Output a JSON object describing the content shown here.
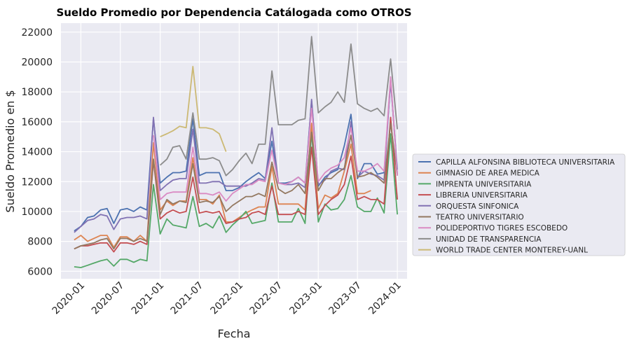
{
  "chart_data": {
    "type": "line",
    "title": "Sueldo Promedio por Dependencia Catálogada como OTROS",
    "xlabel": "Fecha",
    "ylabel": "Sueldo Promedio en $",
    "xlim": [
      "2019-10-01",
      "2024-02-15"
    ],
    "ylim": [
      5500,
      22600
    ],
    "grid": true,
    "legend_position": "outside-right",
    "x_tick_labels": [
      "2020-01",
      "2020-07",
      "2021-01",
      "2021-07",
      "2022-01",
      "2022-07",
      "2023-01",
      "2023-07",
      "2024-01"
    ],
    "y_tick_labels": [
      "6000",
      "8000",
      "10000",
      "12000",
      "14000",
      "16000",
      "18000",
      "20000",
      "22000"
    ],
    "x_months": [
      "2019-12",
      "2020-01",
      "2020-02",
      "2020-03",
      "2020-04",
      "2020-05",
      "2020-06",
      "2020-07",
      "2020-08",
      "2020-09",
      "2020-10",
      "2020-11",
      "2020-12",
      "2021-01",
      "2021-02",
      "2021-03",
      "2021-04",
      "2021-05",
      "2021-06",
      "2021-07",
      "2021-08",
      "2021-09",
      "2021-10",
      "2021-11",
      "2021-12",
      "2022-01",
      "2022-02",
      "2022-03",
      "2022-04",
      "2022-05",
      "2022-06",
      "2022-07",
      "2022-08",
      "2022-09",
      "2022-10",
      "2022-11",
      "2022-12",
      "2023-01",
      "2023-02",
      "2023-03",
      "2023-04",
      "2023-05",
      "2023-06",
      "2023-07",
      "2023-08",
      "2023-09",
      "2023-10",
      "2023-11",
      "2023-12",
      "2024-01"
    ],
    "series": [
      {
        "name": "CAPILLA ALFONSINA BIBLIOTECA UNIVERSITARIA",
        "color": "#4c72b0",
        "values": [
          8700,
          9000,
          9600,
          9700,
          10100,
          10200,
          9200,
          10100,
          10200,
          10000,
          10300,
          10100,
          16200,
          11900,
          12300,
          12600,
          12600,
          12700,
          16200,
          12400,
          12600,
          12600,
          12600,
          11400,
          11400,
          11600,
          12000,
          12300,
          12600,
          12200,
          14700,
          11900,
          11900,
          12000,
          12300,
          11900,
          17400,
          11700,
          12300,
          12600,
          12800,
          14400,
          16500,
          12200,
          13200,
          13200,
          12500,
          12600,
          18700,
          12800
        ]
      },
      {
        "name": "GIMNASIO DE AREA MEDICA",
        "color": "#dd8452",
        "values": [
          8100,
          8400,
          8000,
          8200,
          8400,
          8400,
          7600,
          8300,
          8300,
          8000,
          8400,
          8000,
          14600,
          10100,
          10700,
          10400,
          10700,
          10700,
          13600,
          10800,
          10800,
          10500,
          11100,
          9300,
          9300,
          9600,
          9900,
          10100,
          10300,
          10300,
          13000,
          10500,
          10500,
          10500,
          10500,
          10100,
          15900,
          10200,
          11100,
          10900,
          11200,
          12700,
          14500,
          11200,
          11200,
          11400,
          null,
          null,
          null,
          null
        ]
      },
      {
        "name": "IMPRENTA UNIVERSITARIA",
        "color": "#55a868",
        "values": [
          6300,
          6250,
          6400,
          6550,
          6700,
          6800,
          6350,
          6800,
          6800,
          6600,
          6800,
          6700,
          11800,
          8500,
          9500,
          9100,
          9000,
          8900,
          11000,
          9000,
          9200,
          8900,
          9700,
          8600,
          9100,
          9500,
          10000,
          9200,
          9300,
          9400,
          11900,
          9300,
          9300,
          9300,
          10200,
          9200,
          15300,
          9300,
          10500,
          10100,
          10200,
          10800,
          12400,
          10300,
          10000,
          10000,
          10900,
          9900,
          15200,
          9800
        ]
      },
      {
        "name": "LIBRERIA UNIVERSITARIA",
        "color": "#c44e52",
        "values": [
          7500,
          7700,
          7700,
          7800,
          7900,
          7900,
          7300,
          7900,
          7900,
          7800,
          8000,
          7800,
          13400,
          9500,
          9900,
          10100,
          9900,
          10000,
          12300,
          9900,
          10000,
          9900,
          10000,
          9200,
          9300,
          9500,
          9600,
          9900,
          10000,
          9800,
          11700,
          9800,
          9800,
          9800,
          10000,
          9800,
          14300,
          9800,
          10400,
          10800,
          11100,
          11800,
          13700,
          10800,
          11000,
          10800,
          10800,
          10500,
          16300,
          10800
        ]
      },
      {
        "name": "ORQUESTA SINFONICA",
        "color": "#8172b3",
        "values": [
          8600,
          9000,
          9400,
          9500,
          9800,
          9700,
          8800,
          9500,
          9600,
          9600,
          9700,
          9500,
          16300,
          11400,
          11800,
          12100,
          12200,
          12200,
          15500,
          11900,
          11900,
          12000,
          12000,
          11700,
          11700,
          11700,
          11700,
          11900,
          12200,
          12100,
          15600,
          11900,
          11800,
          11800,
          11900,
          11600,
          17500,
          11800,
          12100,
          12700,
          12900,
          12800,
          16000,
          12300,
          12700,
          12500,
          12400,
          12100,
          18900,
          12500
        ]
      },
      {
        "name": "TEATRO UNIVERSITARIO",
        "color": "#937860",
        "values": [
          7500,
          7700,
          7800,
          7900,
          8100,
          8200,
          7500,
          8200,
          8200,
          8000,
          8200,
          8000,
          13500,
          9800,
          10800,
          10500,
          10700,
          10600,
          13200,
          10600,
          10700,
          10600,
          11000,
          10000,
          10400,
          10700,
          11000,
          11000,
          11200,
          11000,
          13300,
          11500,
          11200,
          11400,
          11800,
          11200,
          15300,
          11400,
          12200,
          12200,
          12600,
          12900,
          15100,
          12300,
          12400,
          12600,
          12300,
          11900,
          15900,
          12400
        ]
      },
      {
        "name": "POLIDEPORTIVO TIGRES ESCOBEDO",
        "color": "#da8bc3",
        "values": [
          null,
          null,
          null,
          null,
          null,
          null,
          null,
          null,
          null,
          null,
          null,
          null,
          15100,
          10800,
          11200,
          11300,
          11300,
          11300,
          14300,
          11200,
          11200,
          11100,
          11300,
          10700,
          11200,
          11500,
          11800,
          11800,
          12100,
          12000,
          14100,
          11900,
          11800,
          12000,
          12300,
          11900,
          16900,
          12000,
          12600,
          12900,
          13100,
          13600,
          15600,
          12700,
          12700,
          12900,
          13200,
          12700,
          19000,
          12400
        ]
      },
      {
        "name": "UNIDAD DE TRANSPARENCIA",
        "color": "#8c8c8c",
        "values": [
          null,
          null,
          null,
          null,
          null,
          null,
          null,
          null,
          null,
          null,
          null,
          null,
          null,
          13100,
          13500,
          14300,
          14400,
          13500,
          16600,
          13500,
          13500,
          13600,
          13400,
          12400,
          12800,
          13400,
          13900,
          13200,
          14500,
          14500,
          19400,
          15800,
          15800,
          15800,
          16100,
          16200,
          21700,
          16600,
          17000,
          17300,
          18000,
          17300,
          21200,
          17200,
          16900,
          16700,
          16900,
          16400,
          20200,
          15500
        ]
      },
      {
        "name": "WORLD TRADE CENTER MONTEREY-UANL",
        "color": "#ccb974",
        "values": [
          null,
          null,
          null,
          null,
          null,
          null,
          null,
          null,
          null,
          null,
          null,
          null,
          null,
          15000,
          15200,
          15400,
          15700,
          15600,
          19700,
          15600,
          15600,
          15500,
          15200,
          14000,
          null,
          null,
          null,
          null,
          null,
          null,
          null,
          null,
          null,
          null,
          null,
          null,
          null,
          null,
          null,
          null,
          null,
          null,
          null,
          null,
          null,
          null,
          null,
          null,
          null,
          null
        ]
      }
    ]
  }
}
